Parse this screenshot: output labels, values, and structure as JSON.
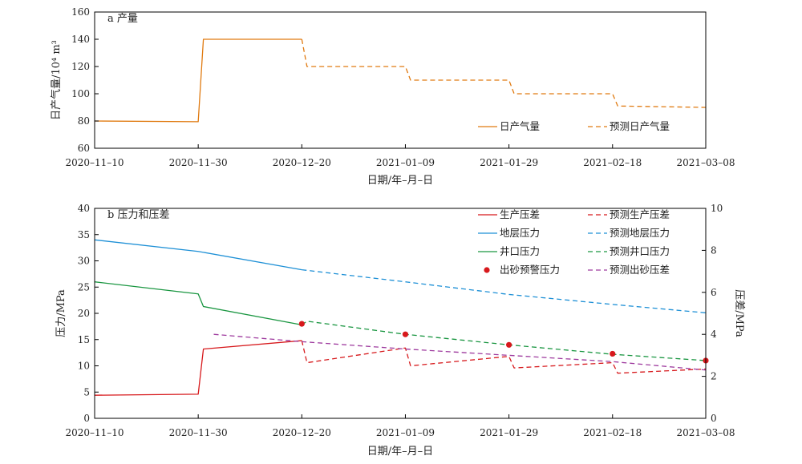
{
  "figure": {
    "x_axis_title": "日期/年–月–日",
    "x_tick_labels": [
      "2020–11–10",
      "2020–11–30",
      "2020–12–20",
      "2021–01–09",
      "2021–01–29",
      "2021–02–18",
      "2021–03–08"
    ]
  },
  "chart_data": [
    {
      "type": "line",
      "panel_label": "a 产量",
      "x_dates": [
        "2020-11-10",
        "2020-11-30",
        "2020-12-20",
        "2021-01-09",
        "2021-01-29",
        "2021-02-18",
        "2021-03-08"
      ],
      "ylabel": "日产气量/10⁴ m³",
      "ylim": [
        60,
        160
      ],
      "yticks": [
        60,
        80,
        100,
        120,
        140,
        160
      ],
      "legend_position": "bottom-right",
      "series": [
        {
          "name": "日产气量",
          "color": "#E07A10",
          "style": "solid",
          "points": [
            [
              "2020-11-10",
              80
            ],
            [
              "2020-11-30",
              79.5
            ],
            [
              "2020-12-01",
              140
            ],
            [
              "2020-12-20",
              140
            ]
          ]
        },
        {
          "name": "预测日产气量",
          "color": "#E07A10",
          "style": "dashed",
          "points": [
            [
              "2020-12-20",
              140
            ],
            [
              "2020-12-21",
              120
            ],
            [
              "2021-01-09",
              120
            ],
            [
              "2021-01-10",
              110
            ],
            [
              "2021-01-29",
              110
            ],
            [
              "2021-01-30",
              100
            ],
            [
              "2021-02-18",
              100
            ],
            [
              "2021-02-19",
              91
            ],
            [
              "2021-03-08",
              90
            ]
          ]
        }
      ]
    },
    {
      "type": "line",
      "panel_label": "b 压力和压差",
      "x_dates": [
        "2020-11-10",
        "2020-11-30",
        "2020-12-20",
        "2021-01-09",
        "2021-01-29",
        "2021-02-18",
        "2021-03-08"
      ],
      "ylabel_left": "压力/MPa",
      "ylabel_right": "压差/MPa",
      "ylim_left": [
        0,
        40
      ],
      "ylim_right": [
        0,
        10
      ],
      "yticks_left": [
        0,
        5,
        10,
        15,
        20,
        25,
        30,
        35,
        40
      ],
      "yticks_right": [
        0,
        2,
        4,
        6,
        8,
        10
      ],
      "legend_position": "top-right",
      "series": [
        {
          "name": "生产压差",
          "color": "#D7191C",
          "style": "solid",
          "axis": "right",
          "points": [
            [
              "2020-11-10",
              1.1
            ],
            [
              "2020-11-30",
              1.15
            ],
            [
              "2020-12-01",
              3.3
            ],
            [
              "2020-12-20",
              3.7
            ]
          ]
        },
        {
          "name": "预测生产压差",
          "color": "#D7191C",
          "style": "dashed",
          "axis": "right",
          "points": [
            [
              "2020-12-20",
              3.7
            ],
            [
              "2020-12-21",
              2.65
            ],
            [
              "2021-01-09",
              3.35
            ],
            [
              "2021-01-10",
              2.5
            ],
            [
              "2021-01-29",
              2.95
            ],
            [
              "2021-01-30",
              2.4
            ],
            [
              "2021-02-18",
              2.65
            ],
            [
              "2021-02-19",
              2.15
            ],
            [
              "2021-03-08",
              2.35
            ]
          ]
        },
        {
          "name": "地层压力",
          "color": "#1E90D6",
          "style": "solid",
          "axis": "left",
          "points": [
            [
              "2020-11-10",
              34
            ],
            [
              "2020-11-30",
              31.8
            ],
            [
              "2020-12-20",
              28.3
            ]
          ]
        },
        {
          "name": "预测地层压力",
          "color": "#1E90D6",
          "style": "dashed",
          "axis": "left",
          "points": [
            [
              "2020-12-20",
              28.3
            ],
            [
              "2021-01-09",
              26
            ],
            [
              "2021-01-29",
              23.6
            ],
            [
              "2021-02-18",
              21.7
            ],
            [
              "2021-03-08",
              20.1
            ]
          ]
        },
        {
          "name": "井口压力",
          "color": "#1A9641",
          "style": "solid",
          "axis": "left",
          "points": [
            [
              "2020-11-10",
              26
            ],
            [
              "2020-11-30",
              23.7
            ],
            [
              "2020-12-01",
              21.3
            ],
            [
              "2020-12-20",
              17.8
            ]
          ]
        },
        {
          "name": "预测井口压力",
          "color": "#1A9641",
          "style": "dashed",
          "axis": "left",
          "points": [
            [
              "2020-12-20",
              17.8
            ],
            [
              "2020-12-21",
              18.5
            ],
            [
              "2021-01-09",
              16
            ],
            [
              "2021-01-29",
              14
            ],
            [
              "2021-02-18",
              12.2
            ],
            [
              "2021-03-08",
              11
            ]
          ]
        },
        {
          "name": "出砂预警压力",
          "color": "#D7191C",
          "style": "marker",
          "axis": "left",
          "points": [
            [
              "2020-12-20",
              18
            ],
            [
              "2021-01-09",
              16
            ],
            [
              "2021-01-29",
              14
            ],
            [
              "2021-02-18",
              12.3
            ],
            [
              "2021-03-08",
              11
            ]
          ]
        },
        {
          "name": "预测出砂压差",
          "color": "#9E3A9E",
          "style": "dashed",
          "axis": "right",
          "points": [
            [
              "2020-12-03",
              4.0
            ],
            [
              "2020-12-20",
              3.65
            ],
            [
              "2021-01-09",
              3.3
            ],
            [
              "2021-01-29",
              3.0
            ],
            [
              "2021-02-18",
              2.7
            ],
            [
              "2021-03-08",
              2.3
            ]
          ]
        }
      ]
    }
  ]
}
